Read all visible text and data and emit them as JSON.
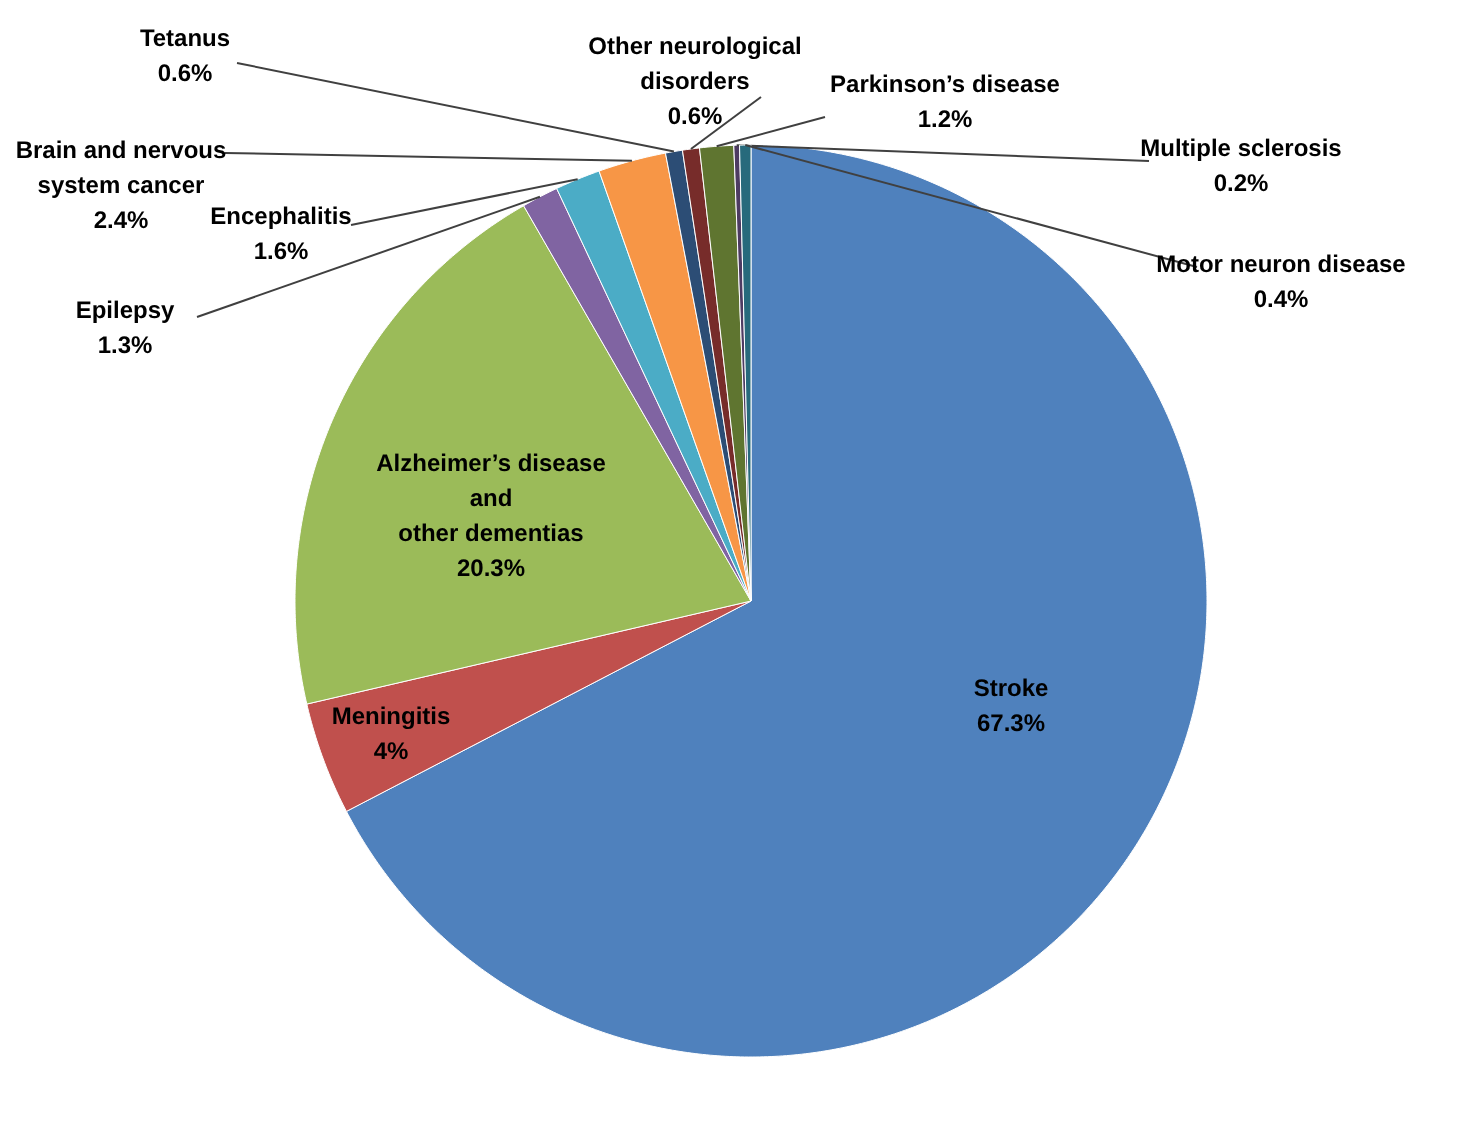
{
  "chart_data": {
    "type": "pie",
    "categories": [
      "Stroke",
      "Meningitis",
      "Alzheimer’s disease\nand\nother dementias",
      "Epilepsy",
      "Encephalitis",
      "Brain and nervous\nsystem cancer",
      "Tetanus",
      "Other neurological\ndisorders",
      "Parkinson’s disease",
      "Multiple sclerosis",
      "Motor neuron disease"
    ],
    "values": [
      67.3,
      4,
      20.3,
      1.3,
      1.6,
      2.4,
      0.6,
      0.6,
      1.2,
      0.2,
      0.4
    ],
    "value_labels": [
      "67.3%",
      "4%",
      "20.3%",
      "1.3%",
      "1.6%",
      "2.4%",
      "0.6%",
      "0.6%",
      "1.2%",
      "0.2%",
      "0.4%"
    ],
    "colors": [
      "#4f81bd",
      "#c0504d",
      "#9bbb59",
      "#8064a2",
      "#4bacc6",
      "#f79646",
      "#2c4d75",
      "#772c2a",
      "#5f7530",
      "#4d3b62",
      "#276a7c"
    ],
    "legend": false
  }
}
